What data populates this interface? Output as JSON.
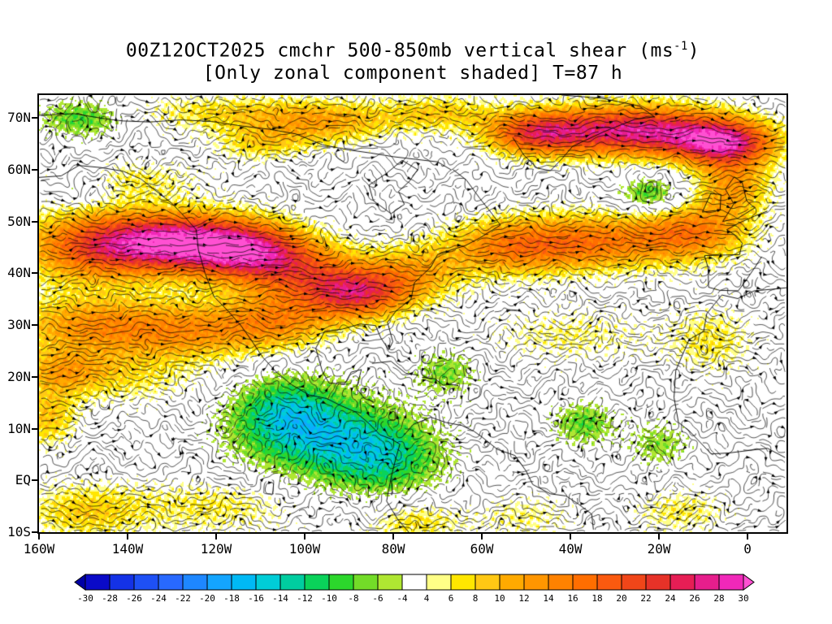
{
  "title": {
    "line1_pre": "00Z12OCT2025 cmchr 500-850mb vertical shear (ms",
    "line1_sup": "-1",
    "line1_post": ")",
    "line2": "[Only zonal component shaded] T=87 h"
  },
  "axes": {
    "lat_range": [
      -10,
      74.4
    ],
    "lon_range": [
      -160,
      8.8
    ],
    "y_ticks": [
      {
        "label": "70N",
        "lat": 70
      },
      {
        "label": "60N",
        "lat": 60
      },
      {
        "label": "50N",
        "lat": 50
      },
      {
        "label": "40N",
        "lat": 40
      },
      {
        "label": "30N",
        "lat": 30
      },
      {
        "label": "20N",
        "lat": 20
      },
      {
        "label": "10N",
        "lat": 10
      },
      {
        "label": "EQ",
        "lat": 0
      },
      {
        "label": "10S",
        "lat": -10
      }
    ],
    "x_ticks": [
      {
        "label": "160W",
        "lon": -160
      },
      {
        "label": "140W",
        "lon": -140
      },
      {
        "label": "120W",
        "lon": -120
      },
      {
        "label": "100W",
        "lon": -100
      },
      {
        "label": "80W",
        "lon": -80
      },
      {
        "label": "60W",
        "lon": -60
      },
      {
        "label": "40W",
        "lon": -40
      },
      {
        "label": "20W",
        "lon": -20
      },
      {
        "label": "0",
        "lon": 0
      }
    ]
  },
  "colorbar": {
    "labels": [
      "-30",
      "-28",
      "-26",
      "-24",
      "-22",
      "-20",
      "-18",
      "-16",
      "-14",
      "-12",
      "-10",
      "-8",
      "-6",
      "-4",
      "4",
      "6",
      "8",
      "10",
      "12",
      "14",
      "16",
      "18",
      "20",
      "22",
      "24",
      "26",
      "28",
      "30"
    ],
    "boundaries": [
      -30,
      -28,
      -26,
      -24,
      -22,
      -20,
      -18,
      -16,
      -14,
      -12,
      -10,
      -8,
      -6,
      -4,
      4,
      6,
      8,
      10,
      12,
      14,
      16,
      18,
      20,
      22,
      24,
      26,
      28,
      30
    ],
    "segment_colors": [
      "#0a0ac8",
      "#1432e6",
      "#1e50f5",
      "#2869ff",
      "#1e87ff",
      "#14a5ff",
      "#00b9f5",
      "#00cdd7",
      "#00cda0",
      "#0ad25a",
      "#2cd72c",
      "#73dc28",
      "#afe632",
      "#ffffff",
      "#ffff87",
      "#ffe600",
      "#ffc814",
      "#ffaa00",
      "#ff9600",
      "#ff8200",
      "#ff6e00",
      "#fa5a0f",
      "#f04619",
      "#e63228",
      "#e61e55",
      "#e61e8c",
      "#f028b9"
    ],
    "below_min_color": "#0000a5",
    "above_max_color": "#ff50d2",
    "white_band": [
      -4,
      4
    ]
  },
  "chart_data": {
    "type": "heatmap",
    "subtype": "streamline_shaded_map",
    "title": "00Z12OCT2025 cmchr 500-850mb vertical shear (ms-1)",
    "subtitle": "[Only zonal component shaded] T=87 h",
    "init_time": "00Z12OCT2025",
    "model": "cmchr",
    "layer": "500-850mb",
    "variable": "vertical shear, zonal component shaded, with shear streamlines",
    "units": "ms-1",
    "forecast_hour": 87,
    "lon_range_deg": [
      -160,
      8.8
    ],
    "lat_range_deg": [
      -10,
      74.4
    ],
    "shading_levels": [
      -30,
      -28,
      -26,
      -24,
      -22,
      -20,
      -18,
      -16,
      -14,
      -12,
      -10,
      -8,
      -6,
      -4,
      4,
      6,
      8,
      10,
      12,
      14,
      16,
      18,
      20,
      22,
      24,
      26,
      28,
      30
    ],
    "feature_format": [
      "lon_deg",
      "lat_deg",
      "sigma_lon_deg",
      "sigma_lat_deg",
      "peak_value_ms"
    ],
    "shaded_features": [
      [
        -150,
        70,
        7,
        2.5,
        -9
      ],
      [
        -150,
        57,
        5,
        2.5,
        -6
      ],
      [
        -118,
        71,
        16,
        2.5,
        7
      ],
      [
        -95,
        69,
        11,
        3,
        10
      ],
      [
        -110,
        65,
        8,
        2.5,
        7
      ],
      [
        -70,
        71,
        9,
        2.5,
        8
      ],
      [
        -48,
        67,
        8,
        3,
        17
      ],
      [
        -25,
        67.5,
        15,
        3.5,
        27
      ],
      [
        -5,
        65,
        8,
        3,
        22
      ],
      [
        -3,
        57,
        6,
        4,
        12
      ],
      [
        -22,
        55,
        5,
        2.5,
        -10
      ],
      [
        -140,
        58,
        12,
        2.5,
        6
      ],
      [
        -148,
        45,
        12,
        5,
        16
      ],
      [
        -128,
        46,
        13,
        4,
        26
      ],
      [
        -112,
        44,
        10,
        4,
        18
      ],
      [
        -100,
        40,
        10,
        4,
        12
      ],
      [
        -88,
        36,
        8,
        3.5,
        20
      ],
      [
        -75,
        40,
        8,
        4,
        10
      ],
      [
        -55,
        45,
        10,
        4,
        12
      ],
      [
        -35,
        46,
        13,
        4,
        15
      ],
      [
        -12,
        48,
        9,
        4,
        14
      ],
      [
        -150,
        30,
        13,
        4,
        11
      ],
      [
        -125,
        29,
        14,
        4,
        12
      ],
      [
        -105,
        31,
        9,
        4,
        10
      ],
      [
        -155,
        21,
        7,
        3,
        9
      ],
      [
        -158,
        12,
        5,
        4,
        9
      ],
      [
        -140,
        20,
        12,
        4,
        6
      ],
      [
        -40,
        28,
        14,
        4,
        5
      ],
      [
        -8,
        27,
        7,
        5,
        6
      ],
      [
        -97,
        9,
        13,
        6,
        -12
      ],
      [
        -82,
        4,
        10,
        5,
        -10
      ],
      [
        -105,
        14,
        8,
        5,
        -8
      ],
      [
        -68,
        21,
        5,
        3,
        -7
      ],
      [
        -37,
        11,
        5,
        3,
        -8
      ],
      [
        -20,
        7,
        5,
        3,
        -6
      ],
      [
        -150,
        -6,
        10,
        4,
        8
      ],
      [
        -120,
        -5,
        14,
        4,
        6
      ],
      [
        -75,
        -8,
        8,
        3,
        7
      ],
      [
        -50,
        -7,
        8,
        3,
        5
      ],
      [
        -15,
        -6,
        8,
        3,
        6
      ]
    ]
  }
}
